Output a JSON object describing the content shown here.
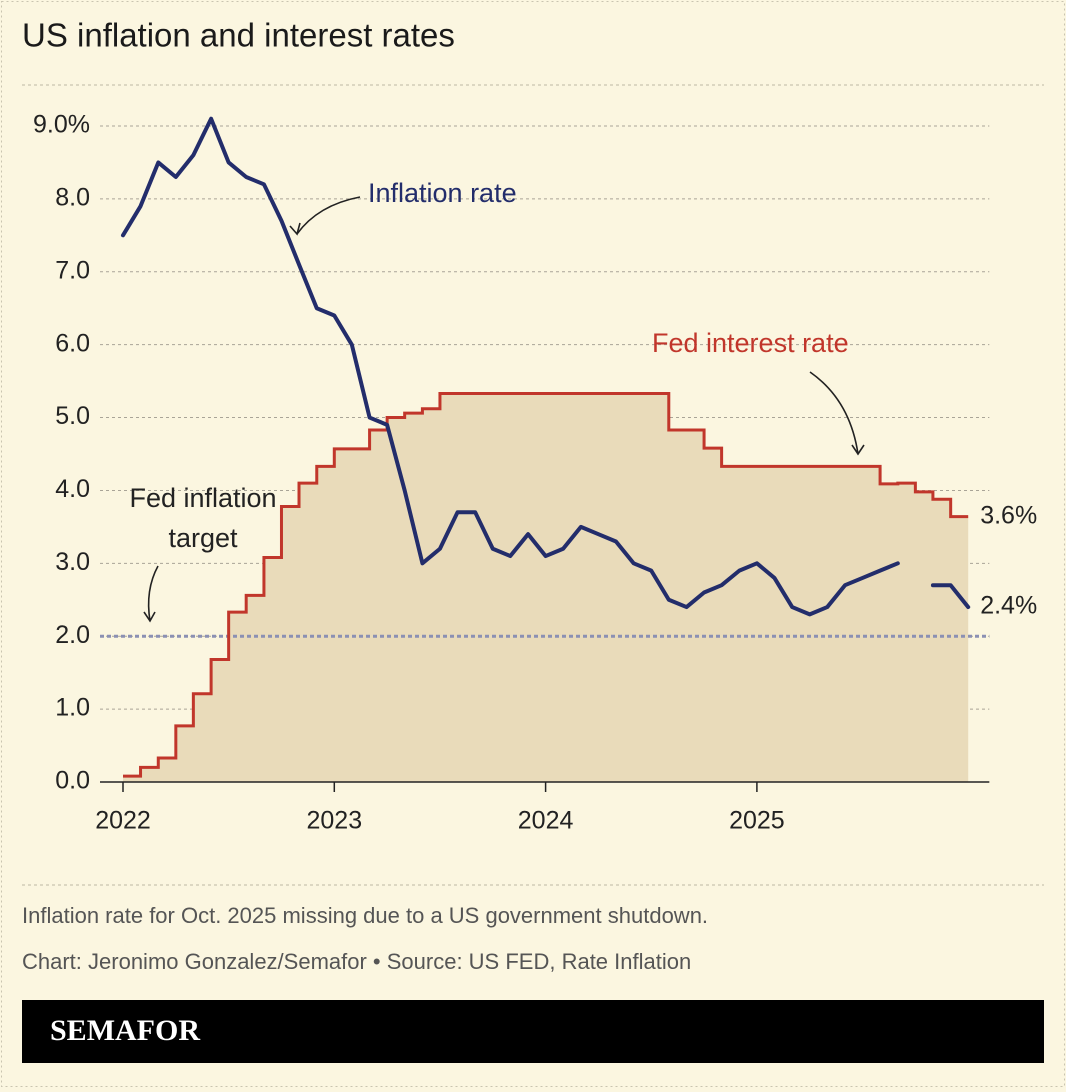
{
  "chart_data": {
    "type": "line",
    "title": "US inflation and interest rates",
    "x": [
      2022,
      2022.083,
      2022.167,
      2022.25,
      2022.333,
      2022.417,
      2022.5,
      2022.583,
      2022.667,
      2022.75,
      2022.833,
      2022.917,
      2023,
      2023.083,
      2023.167,
      2023.25,
      2023.333,
      2023.417,
      2023.5,
      2023.583,
      2023.667,
      2023.75,
      2023.833,
      2023.917,
      2024,
      2024.083,
      2024.167,
      2024.25,
      2024.333,
      2024.417,
      2024.5,
      2024.583,
      2024.667,
      2024.75,
      2024.833,
      2024.917,
      2025,
      2025.083,
      2025.167,
      2025.25,
      2025.333,
      2025.417,
      2025.5,
      2025.583,
      2025.667,
      2025.75,
      2025.833,
      2025.917,
      2026
    ],
    "series": [
      {
        "name": "Fed interest rate",
        "color": "#c1362b",
        "fill": "#e9dbba",
        "step": true,
        "values": [
          0.08,
          0.2,
          0.33,
          0.77,
          1.21,
          1.68,
          2.33,
          2.56,
          3.08,
          3.78,
          4.1,
          4.33,
          4.57,
          4.57,
          4.83,
          5.0,
          5.06,
          5.12,
          5.33,
          5.33,
          5.33,
          5.33,
          5.33,
          5.33,
          5.33,
          5.33,
          5.33,
          5.33,
          5.33,
          5.33,
          5.33,
          4.83,
          4.83,
          4.58,
          4.33,
          4.33,
          4.33,
          4.33,
          4.33,
          4.33,
          4.33,
          4.33,
          4.33,
          4.09,
          4.1,
          3.98,
          3.88,
          3.64,
          3.64
        ],
        "value_labels": [
          null,
          null,
          null,
          null,
          null,
          null,
          null,
          null,
          null,
          null,
          null,
          null,
          null,
          null,
          null,
          null,
          null,
          null,
          null,
          null,
          null,
          null,
          null,
          null,
          null,
          null,
          null,
          null,
          null,
          null,
          null,
          null,
          null,
          null,
          null,
          null,
          null,
          null,
          null,
          null,
          null,
          null,
          null,
          null,
          null,
          null,
          null,
          null,
          "3.6%"
        ]
      },
      {
        "name": "Inflation rate",
        "color": "#232d6b",
        "step": false,
        "values": [
          7.5,
          7.9,
          8.5,
          8.3,
          8.6,
          9.1,
          8.5,
          8.3,
          8.2,
          7.7,
          7.1,
          6.5,
          6.4,
          6.0,
          5.0,
          4.9,
          4.0,
          3.0,
          3.2,
          3.7,
          3.7,
          3.2,
          3.1,
          3.4,
          3.1,
          3.2,
          3.5,
          3.4,
          3.3,
          3.0,
          2.9,
          2.5,
          2.4,
          2.6,
          2.7,
          2.9,
          3.0,
          2.8,
          2.4,
          2.3,
          2.4,
          2.7,
          2.8,
          2.9,
          3.0,
          null,
          2.7,
          2.7,
          2.4
        ],
        "value_labels": [
          null,
          null,
          null,
          null,
          null,
          null,
          null,
          null,
          null,
          null,
          null,
          null,
          null,
          null,
          null,
          null,
          null,
          null,
          null,
          null,
          null,
          null,
          null,
          null,
          null,
          null,
          null,
          null,
          null,
          null,
          null,
          null,
          null,
          null,
          null,
          null,
          null,
          null,
          null,
          null,
          null,
          null,
          null,
          null,
          null,
          null,
          null,
          null,
          "2.4%"
        ]
      }
    ],
    "target": {
      "value": 2,
      "label_lines": [
        "Fed inflation",
        "target"
      ],
      "color": "#8b90b3"
    },
    "xlim": [
      2022,
      2026.1
    ],
    "xticks": [
      2022,
      2023,
      2024,
      2025
    ],
    "ylim": [
      0,
      9.4
    ],
    "yticks": [
      {
        "value": 0,
        "label": "0.0"
      },
      {
        "value": 1,
        "label": "1.0"
      },
      {
        "value": 2,
        "label": "2.0"
      },
      {
        "value": 3,
        "label": "3.0"
      },
      {
        "value": 4,
        "label": "4.0"
      },
      {
        "value": 5,
        "label": "5.0"
      },
      {
        "value": 6,
        "label": "6.0"
      },
      {
        "value": 7,
        "label": "7.0"
      },
      {
        "value": 8,
        "label": "8.0"
      },
      {
        "value": 9,
        "label": "9.0%"
      }
    ],
    "grid": true,
    "note": "Inflation rate for Oct. 2025 missing due to a US government shutdown.",
    "credit": "Chart: Jeronimo Gonzalez/Semafor • Source: US FED, Rate Inflation",
    "brand": "SEMAFOR"
  }
}
